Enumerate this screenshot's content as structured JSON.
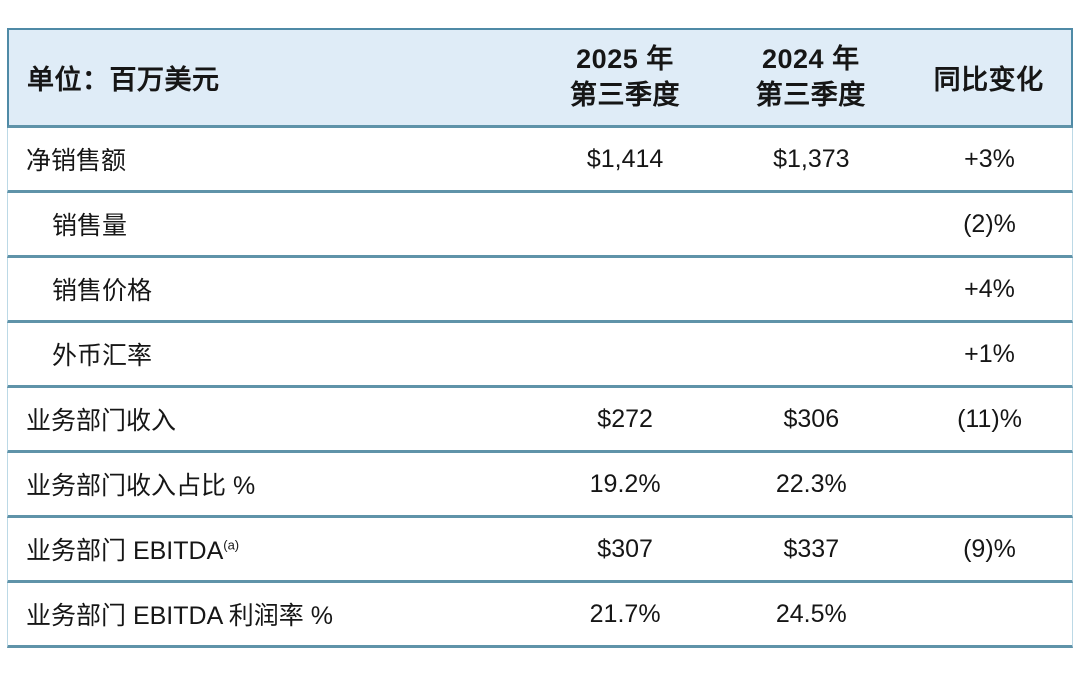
{
  "header": {
    "unit_label": "单位：百万美元",
    "col_2025": {
      "line1": "2025 年",
      "line2": "第三季度"
    },
    "col_2024": {
      "line1": "2024 年",
      "line2": "第三季度"
    },
    "col_yoy": "同比变化"
  },
  "rows": [
    {
      "label": "净销售额",
      "indent": false,
      "v2025": "$1,414",
      "v2024": "$1,373",
      "yoy": "+3%"
    },
    {
      "label": "销售量",
      "indent": true,
      "v2025": "",
      "v2024": "",
      "yoy": "(2)%"
    },
    {
      "label": "销售价格",
      "indent": true,
      "v2025": "",
      "v2024": "",
      "yoy": "+4%"
    },
    {
      "label": "外币汇率",
      "indent": true,
      "v2025": "",
      "v2024": "",
      "yoy": "+1%"
    },
    {
      "label": "业务部门收入",
      "indent": false,
      "v2025": "$272",
      "v2024": "$306",
      "yoy": "(11)%"
    },
    {
      "label": "业务部门收入占比 %",
      "indent": false,
      "v2025": "19.2%",
      "v2024": "22.3%",
      "yoy": ""
    },
    {
      "label": "业务部门 EBITDA",
      "superscript": "(a)",
      "indent": false,
      "v2025": "$307",
      "v2024": "$337",
      "yoy": "(9)%"
    },
    {
      "label": "业务部门 EBITDA 利润率 %",
      "indent": false,
      "v2025": "21.7%",
      "v2024": "24.5%",
      "yoy": ""
    }
  ],
  "colors": {
    "header_bg": "#dfecf7",
    "separator": "#5f93a9",
    "header_outline": "#4f8aa6",
    "side_border": "#bcd9e6",
    "text": "#161616"
  },
  "chart_data": {
    "type": "table",
    "title": "单位：百万美元",
    "columns": [
      "单位：百万美元",
      "2025 年第三季度",
      "2024 年第三季度",
      "同比变化"
    ],
    "rows": [
      [
        "净销售额",
        "$1,414",
        "$1,373",
        "+3%"
      ],
      [
        "销售量",
        "",
        "",
        "(2)%"
      ],
      [
        "销售价格",
        "",
        "",
        "+4%"
      ],
      [
        "外币汇率",
        "",
        "",
        "+1%"
      ],
      [
        "业务部门收入",
        "$272",
        "$306",
        "(11)%"
      ],
      [
        "业务部门收入占比 %",
        "19.2%",
        "22.3%",
        ""
      ],
      [
        "业务部门 EBITDA(a)",
        "$307",
        "$337",
        "(9)%"
      ],
      [
        "业务部门 EBITDA 利润率 %",
        "21.7%",
        "24.5%",
        ""
      ]
    ]
  }
}
